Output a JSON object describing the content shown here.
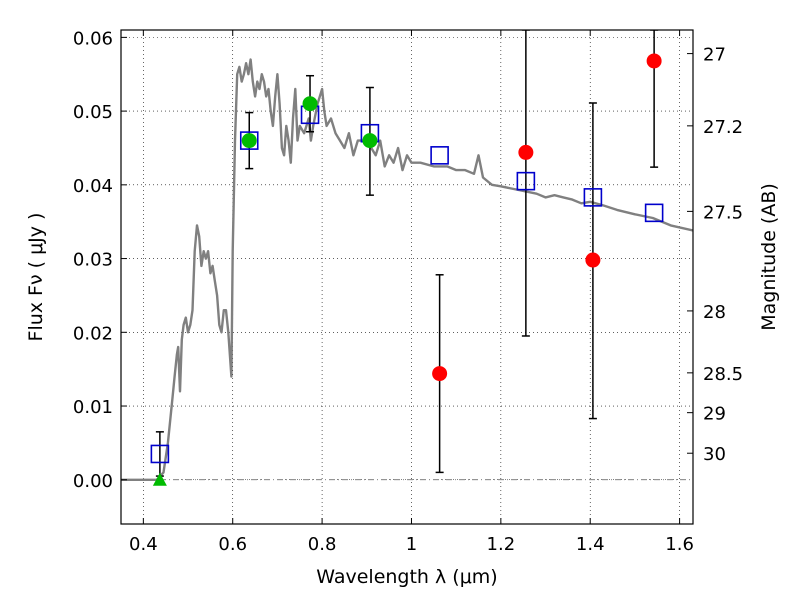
{
  "chart_data": {
    "type": "scatter",
    "xlabel": "Wavelength  λ (μm)",
    "ylabel": "Flux  Fν  ( μJy )",
    "y2label": "Magnitude (AB)",
    "xlim": [
      0.35,
      1.63
    ],
    "ylim": [
      -0.006,
      0.061
    ],
    "grid": true,
    "x_ticks": [
      0.4,
      0.6,
      0.8,
      1.0,
      1.2,
      1.4,
      1.6
    ],
    "x_tick_labels": [
      "0.4",
      "0.6",
      "0.8",
      "1",
      "1.2",
      "1.4",
      "1.6"
    ],
    "y_ticks": [
      0.0,
      0.01,
      0.02,
      0.03,
      0.04,
      0.05,
      0.06
    ],
    "y_tick_labels": [
      "0.00",
      "0.01",
      "0.02",
      "0.03",
      "0.04",
      "0.05",
      "0.06"
    ],
    "y2_ticks": [
      {
        "label": "27",
        "flux": 0.0578
      },
      {
        "label": "27.2",
        "flux": 0.048
      },
      {
        "label": "27.5",
        "flux": 0.0364
      },
      {
        "label": "28",
        "flux": 0.0229
      },
      {
        "label": "28.5",
        "flux": 0.0145
      },
      {
        "label": "29",
        "flux": 0.0091
      },
      {
        "label": "30",
        "flux": 0.0036
      }
    ],
    "series": [
      {
        "type": "line",
        "color": "#808080",
        "points": [
          [
            0.35,
            0.0
          ],
          [
            0.43,
            0.0
          ],
          [
            0.445,
            0.001
          ],
          [
            0.455,
            0.005
          ],
          [
            0.465,
            0.011
          ],
          [
            0.47,
            0.014
          ],
          [
            0.475,
            0.017
          ],
          [
            0.478,
            0.018
          ],
          [
            0.482,
            0.012
          ],
          [
            0.486,
            0.019
          ],
          [
            0.49,
            0.021
          ],
          [
            0.495,
            0.022
          ],
          [
            0.5,
            0.02
          ],
          [
            0.505,
            0.021
          ],
          [
            0.51,
            0.023
          ],
          [
            0.515,
            0.031
          ],
          [
            0.52,
            0.0345
          ],
          [
            0.525,
            0.033
          ],
          [
            0.53,
            0.029
          ],
          [
            0.535,
            0.031
          ],
          [
            0.54,
            0.03
          ],
          [
            0.545,
            0.031
          ],
          [
            0.55,
            0.028
          ],
          [
            0.555,
            0.029
          ],
          [
            0.56,
            0.027
          ],
          [
            0.565,
            0.025
          ],
          [
            0.57,
            0.021
          ],
          [
            0.575,
            0.02
          ],
          [
            0.58,
            0.023
          ],
          [
            0.585,
            0.023
          ],
          [
            0.59,
            0.02
          ],
          [
            0.597,
            0.014
          ],
          [
            0.6,
            0.031
          ],
          [
            0.605,
            0.046
          ],
          [
            0.61,
            0.055
          ],
          [
            0.615,
            0.056
          ],
          [
            0.62,
            0.054
          ],
          [
            0.625,
            0.055
          ],
          [
            0.63,
            0.0565
          ],
          [
            0.635,
            0.055
          ],
          [
            0.64,
            0.057
          ],
          [
            0.645,
            0.054
          ],
          [
            0.65,
            0.052
          ],
          [
            0.655,
            0.054
          ],
          [
            0.66,
            0.053
          ],
          [
            0.665,
            0.055
          ],
          [
            0.67,
            0.054
          ],
          [
            0.675,
            0.052
          ],
          [
            0.68,
            0.053
          ],
          [
            0.685,
            0.05
          ],
          [
            0.69,
            0.048
          ],
          [
            0.695,
            0.052
          ],
          [
            0.7,
            0.055
          ],
          [
            0.705,
            0.051
          ],
          [
            0.71,
            0.045
          ],
          [
            0.715,
            0.044
          ],
          [
            0.72,
            0.048
          ],
          [
            0.725,
            0.046
          ],
          [
            0.73,
            0.043
          ],
          [
            0.735,
            0.049
          ],
          [
            0.74,
            0.053
          ],
          [
            0.745,
            0.046
          ],
          [
            0.75,
            0.048
          ],
          [
            0.76,
            0.047
          ],
          [
            0.77,
            0.049
          ],
          [
            0.775,
            0.046
          ],
          [
            0.78,
            0.048
          ],
          [
            0.79,
            0.051
          ],
          [
            0.8,
            0.053
          ],
          [
            0.805,
            0.05
          ],
          [
            0.81,
            0.048
          ],
          [
            0.82,
            0.049
          ],
          [
            0.83,
            0.047
          ],
          [
            0.84,
            0.046
          ],
          [
            0.85,
            0.045
          ],
          [
            0.86,
            0.047
          ],
          [
            0.87,
            0.044
          ],
          [
            0.88,
            0.046
          ],
          [
            0.9,
            0.046
          ],
          [
            0.91,
            0.045
          ],
          [
            0.92,
            0.044
          ],
          [
            0.93,
            0.046
          ],
          [
            0.94,
            0.0425
          ],
          [
            0.95,
            0.044
          ],
          [
            0.96,
            0.043
          ],
          [
            0.97,
            0.045
          ],
          [
            0.98,
            0.042
          ],
          [
            0.99,
            0.044
          ],
          [
            1.0,
            0.043
          ],
          [
            1.02,
            0.043
          ],
          [
            1.05,
            0.0425
          ],
          [
            1.08,
            0.0425
          ],
          [
            1.1,
            0.042
          ],
          [
            1.12,
            0.042
          ],
          [
            1.14,
            0.0415
          ],
          [
            1.15,
            0.044
          ],
          [
            1.16,
            0.041
          ],
          [
            1.18,
            0.04
          ],
          [
            1.2,
            0.0398
          ],
          [
            1.24,
            0.0393
          ],
          [
            1.28,
            0.0388
          ],
          [
            1.3,
            0.0383
          ],
          [
            1.32,
            0.0386
          ],
          [
            1.34,
            0.0383
          ],
          [
            1.36,
            0.038
          ],
          [
            1.38,
            0.0375
          ],
          [
            1.4,
            0.0377
          ],
          [
            1.43,
            0.0372
          ],
          [
            1.46,
            0.0366
          ],
          [
            1.5,
            0.036
          ],
          [
            1.54,
            0.0355
          ],
          [
            1.58,
            0.0345
          ],
          [
            1.63,
            0.0338
          ]
        ]
      },
      {
        "type": "errorbar",
        "color": "#000000",
        "points": [
          {
            "x": 0.437,
            "lo": 0.0005,
            "hi": 0.0065
          },
          {
            "x": 0.637,
            "lo": 0.0422,
            "hi": 0.0498
          },
          {
            "x": 0.773,
            "lo": 0.0472,
            "hi": 0.0548
          },
          {
            "x": 0.907,
            "lo": 0.0386,
            "hi": 0.0532
          },
          {
            "x": 1.063,
            "lo": 0.001,
            "hi": 0.0278
          },
          {
            "x": 1.256,
            "lo": 0.0195,
            "hi": 0.061
          },
          {
            "x": 1.406,
            "lo": 0.0083,
            "hi": 0.0511
          },
          {
            "x": 1.543,
            "lo": 0.0424,
            "hi": 0.061
          }
        ]
      },
      {
        "type": "square",
        "color": "#0000cc",
        "points": [
          [
            0.437,
            0.0035
          ],
          [
            0.637,
            0.046
          ],
          [
            0.773,
            0.0495
          ],
          [
            0.907,
            0.047
          ],
          [
            1.063,
            0.044
          ],
          [
            1.256,
            0.0405
          ],
          [
            1.406,
            0.0383
          ],
          [
            1.543,
            0.0362
          ]
        ]
      },
      {
        "type": "circle",
        "color": "#00bb00",
        "points": [
          [
            0.637,
            0.046
          ],
          [
            0.773,
            0.051
          ],
          [
            0.907,
            0.046
          ]
        ]
      },
      {
        "type": "triangle",
        "color": "#00bb00",
        "points": [
          [
            0.437,
            0.0
          ]
        ]
      },
      {
        "type": "circle",
        "color": "#ff0000",
        "points": [
          [
            1.063,
            0.0144
          ],
          [
            1.256,
            0.0444
          ],
          [
            1.406,
            0.0298
          ],
          [
            1.543,
            0.0568
          ]
        ]
      }
    ]
  }
}
